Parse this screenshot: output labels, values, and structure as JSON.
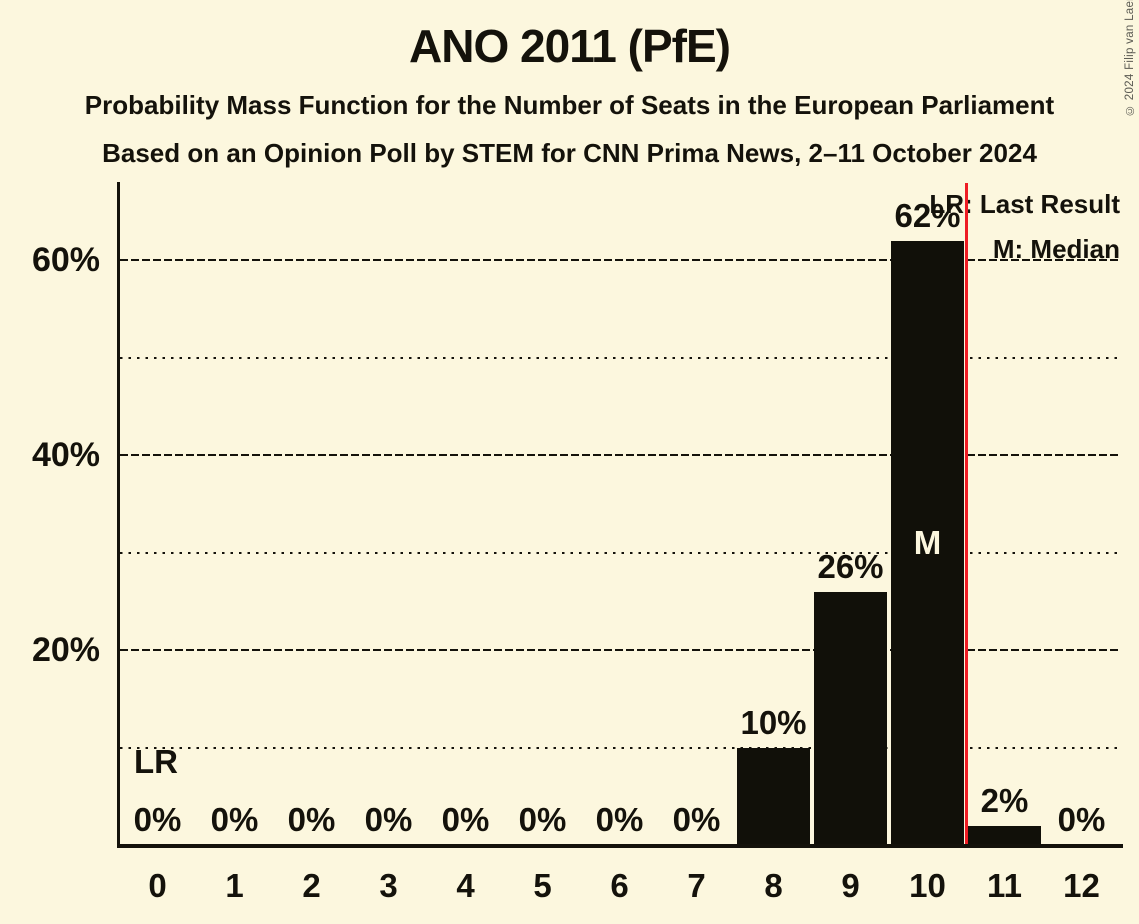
{
  "header": {
    "title": "ANO 2011 (PfE)",
    "subtitle1": "Probability Mass Function for the Number of Seats in the European Parliament",
    "subtitle2": "Based on an Opinion Poll by STEM for CNN Prima News, 2–11 October 2024"
  },
  "copyright": "© 2024 Filip van Laenen",
  "legend": {
    "lr_label": "LR: Last Result",
    "m_label": "M: Median"
  },
  "chart_data": {
    "type": "bar",
    "title": "ANO 2011 (PfE)",
    "xlabel": "Number of Seats in the European Parliament",
    "ylabel": "Probability Mass",
    "categories": [
      "0",
      "1",
      "2",
      "3",
      "4",
      "5",
      "6",
      "7",
      "8",
      "9",
      "10",
      "11",
      "12"
    ],
    "values": [
      0,
      0,
      0,
      0,
      0,
      0,
      0,
      0,
      10,
      26,
      62,
      2,
      0
    ],
    "value_labels": [
      "0%",
      "0%",
      "0%",
      "0%",
      "0%",
      "0%",
      "0%",
      "0%",
      "10%",
      "26%",
      "62%",
      "2%",
      "0%"
    ],
    "ylim": [
      0,
      68
    ],
    "yticks": [
      {
        "value": 20,
        "label": "20%"
      },
      {
        "value": 40,
        "label": "40%"
      },
      {
        "value": 60,
        "label": "60%"
      }
    ],
    "minor_gridlines": [
      10,
      30,
      50
    ],
    "grid": true,
    "legend_position": "top-right",
    "median_category_index": 10,
    "median_marker": "M",
    "last_result_marker": "LR",
    "last_result_line_boundary_index": 11,
    "colors": {
      "background": "#fcf7de",
      "bar": "#111009",
      "text": "#14120b",
      "last_result_line": "#ee1c24",
      "median_text": "#fcf7de",
      "copyright_text": "#5a5a52"
    }
  }
}
